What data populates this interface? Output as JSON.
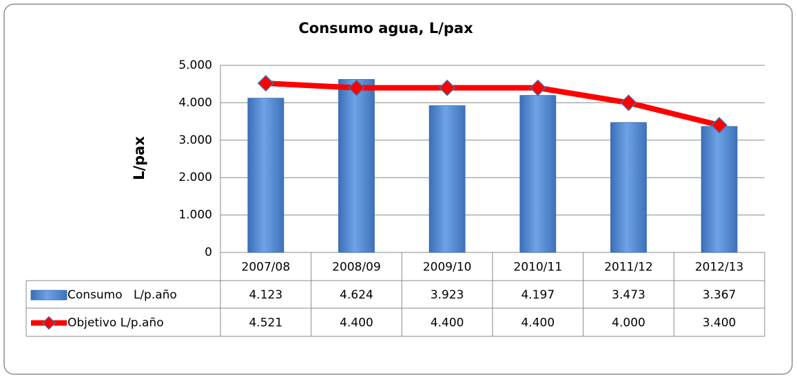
{
  "chart_data": {
    "type": "bar",
    "title": "Consumo agua, L/pax",
    "y_label": "L/pax",
    "categories": [
      "2007/08",
      "2008/09",
      "2009/10",
      "2010/11",
      "2011/12",
      "2012/13"
    ],
    "series": [
      {
        "name": "Consumo   L/p.año",
        "type": "bar",
        "color": "#558ed5",
        "values": [
          4123,
          4624,
          3923,
          4197,
          3473,
          3367
        ],
        "value_labels": [
          "4.123",
          "4.624",
          "3.923",
          "4.197",
          "3.473",
          "3.367"
        ]
      },
      {
        "name": "Objetivo L/p.año",
        "type": "line",
        "color": "#ff0000",
        "values": [
          4521,
          4400,
          4400,
          4400,
          4000,
          3400
        ],
        "value_labels": [
          "4.521",
          "4.400",
          "4.400",
          "4.400",
          "4.000",
          "3.400"
        ]
      }
    ],
    "ylim": [
      0,
      5000
    ],
    "yticks": [
      0,
      {
        "value": 1000,
        "label": "1.000"
      },
      {
        "value": 2000,
        "label": "2.000"
      },
      {
        "value": 3000,
        "label": "3.000"
      },
      {
        "value": 4000,
        "label": "4.000"
      },
      {
        "value": 5000,
        "label": "5.000"
      }
    ],
    "grid": true
  }
}
